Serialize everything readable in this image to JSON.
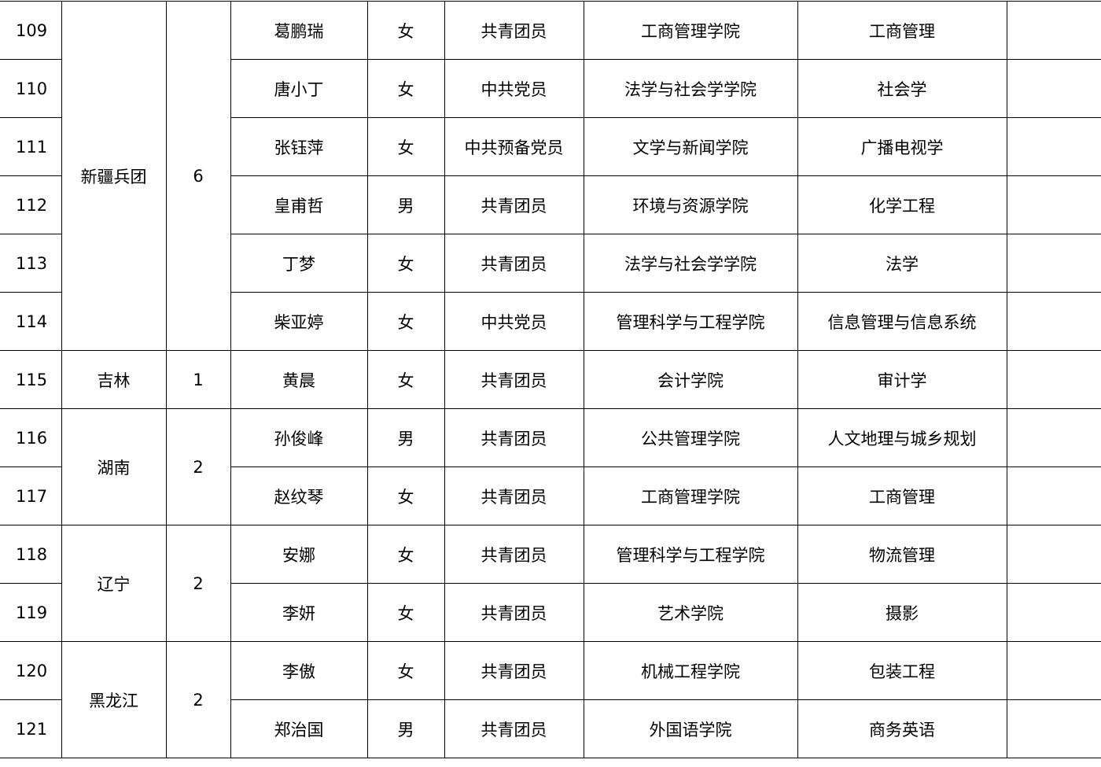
{
  "groups": [
    {
      "province": "新疆兵团",
      "count": "6",
      "rows": [
        {
          "no": "109",
          "name": "葛鹏瑞",
          "gender": "女",
          "political_status": "共青团员",
          "college": "工商管理学院",
          "major": "工商管理",
          "note": ""
        },
        {
          "no": "110",
          "name": "唐小丁",
          "gender": "女",
          "political_status": "中共党员",
          "college": "法学与社会学学院",
          "major": "社会学",
          "note": ""
        },
        {
          "no": "111",
          "name": "张钰萍",
          "gender": "女",
          "political_status": "中共预备党员",
          "college": "文学与新闻学院",
          "major": "广播电视学",
          "note": ""
        },
        {
          "no": "112",
          "name": "皇甫哲",
          "gender": "男",
          "political_status": "共青团员",
          "college": "环境与资源学院",
          "major": "化学工程",
          "note": ""
        },
        {
          "no": "113",
          "name": "丁梦",
          "gender": "女",
          "political_status": "共青团员",
          "college": "法学与社会学学院",
          "major": "法学",
          "note": ""
        },
        {
          "no": "114",
          "name": "柴亚婷",
          "gender": "女",
          "political_status": "中共党员",
          "college": "管理科学与工程学院",
          "major": "信息管理与信息系统",
          "note": ""
        }
      ]
    },
    {
      "province": "吉林",
      "count": "1",
      "rows": [
        {
          "no": "115",
          "name": "黄晨",
          "gender": "女",
          "political_status": "共青团员",
          "college": "会计学院",
          "major": "审计学",
          "note": ""
        }
      ]
    },
    {
      "province": "湖南",
      "count": "2",
      "rows": [
        {
          "no": "116",
          "name": "孙俊峰",
          "gender": "男",
          "political_status": "共青团员",
          "college": "公共管理学院",
          "major": "人文地理与城乡规划",
          "note": ""
        },
        {
          "no": "117",
          "name": "赵纹琴",
          "gender": "女",
          "political_status": "共青团员",
          "college": "工商管理学院",
          "major": "工商管理",
          "note": ""
        }
      ]
    },
    {
      "province": "辽宁",
      "count": "2",
      "rows": [
        {
          "no": "118",
          "name": "安娜",
          "gender": "女",
          "political_status": "共青团员",
          "college": "管理科学与工程学院",
          "major": "物流管理",
          "note": ""
        },
        {
          "no": "119",
          "name": "李妍",
          "gender": "女",
          "political_status": "共青团员",
          "college": "艺术学院",
          "major": "摄影",
          "note": ""
        }
      ]
    },
    {
      "province": "黑龙江",
      "count": "2",
      "rows": [
        {
          "no": "120",
          "name": "李傲",
          "gender": "女",
          "political_status": "共青团员",
          "college": "机械工程学院",
          "major": "包装工程",
          "note": ""
        },
        {
          "no": "121",
          "name": "郑治国",
          "gender": "男",
          "political_status": "共青团员",
          "college": "外国语学院",
          "major": "商务英语",
          "note": ""
        }
      ]
    }
  ]
}
